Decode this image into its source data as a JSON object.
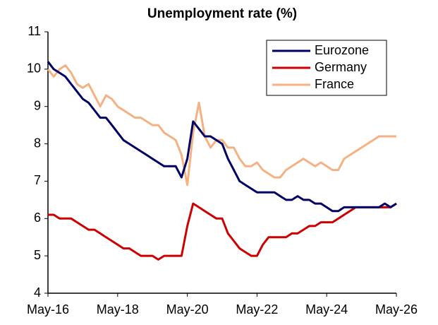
{
  "chart_data": {
    "type": "line",
    "title": "Unemployment rate (%)",
    "categories": [
      "May-16",
      null,
      null,
      null,
      null,
      null,
      null,
      null,
      null,
      null,
      null,
      null,
      "May-18",
      null,
      null,
      null,
      null,
      null,
      null,
      null,
      null,
      null,
      null,
      null,
      "May-20",
      null,
      null,
      null,
      null,
      null,
      null,
      null,
      null,
      null,
      null,
      null,
      "May-22",
      null,
      null,
      null,
      null,
      null,
      null,
      null,
      null,
      null,
      null,
      null,
      "May-24",
      null,
      null,
      null,
      null,
      null,
      null,
      null,
      null,
      null,
      null,
      null,
      "May-26"
    ],
    "series": [
      {
        "name": "Eurozone",
        "color": "#000066",
        "values": [
          10.2,
          10.0,
          9.9,
          9.8,
          9.6,
          9.4,
          9.2,
          9.1,
          8.9,
          8.7,
          8.7,
          8.5,
          8.3,
          8.1,
          8.0,
          7.9,
          7.8,
          7.7,
          7.6,
          7.5,
          7.4,
          7.4,
          7.4,
          7.1,
          7.6,
          8.6,
          8.4,
          8.2,
          8.2,
          8.1,
          8.0,
          7.6,
          7.3,
          7.0,
          6.9,
          6.8,
          6.7,
          6.7,
          6.7,
          6.7,
          6.6,
          6.5,
          6.5,
          6.6,
          6.5,
          6.5,
          6.4,
          6.4,
          6.3,
          6.2,
          6.2,
          6.3,
          6.3,
          6.3,
          6.3,
          6.3,
          6.3,
          6.3,
          6.4,
          6.3,
          6.4
        ]
      },
      {
        "name": "Germany",
        "color": "#cc0000",
        "values": [
          6.1,
          6.1,
          6.0,
          6.0,
          6.0,
          5.9,
          5.8,
          5.7,
          5.7,
          5.6,
          5.5,
          5.4,
          5.3,
          5.2,
          5.2,
          5.1,
          5.0,
          5.0,
          5.0,
          4.9,
          5.0,
          5.0,
          5.0,
          5.0,
          5.8,
          6.4,
          6.3,
          6.2,
          6.1,
          6.0,
          6.0,
          5.6,
          5.4,
          5.2,
          5.1,
          5.0,
          5.0,
          5.3,
          5.5,
          5.5,
          5.5,
          5.5,
          5.6,
          5.6,
          5.7,
          5.8,
          5.8,
          5.9,
          5.9,
          5.9,
          6.0,
          6.1,
          6.2,
          6.3,
          6.3,
          6.3,
          6.3,
          6.3,
          6.3,
          6.3,
          6.4
        ]
      },
      {
        "name": "France",
        "color": "#f4b183",
        "values": [
          10.0,
          9.8,
          10.0,
          10.1,
          9.9,
          9.6,
          9.5,
          9.6,
          9.3,
          9.0,
          9.3,
          9.2,
          9.0,
          8.9,
          8.8,
          8.7,
          8.7,
          8.6,
          8.5,
          8.5,
          8.3,
          8.2,
          8.1,
          7.7,
          6.9,
          8.3,
          9.1,
          8.2,
          7.9,
          8.1,
          8.1,
          7.9,
          7.9,
          7.6,
          7.4,
          7.4,
          7.5,
          7.3,
          7.2,
          7.1,
          7.1,
          7.3,
          7.4,
          7.5,
          7.6,
          7.5,
          7.4,
          7.5,
          7.4,
          7.3,
          7.3,
          7.6,
          7.7,
          7.8,
          7.9,
          8.0,
          8.1,
          8.2,
          8.2,
          8.2,
          8.2
        ]
      }
    ],
    "ylim": [
      4,
      11
    ],
    "yticks": [
      4,
      5,
      6,
      7,
      8,
      9,
      10,
      11
    ],
    "grid": false,
    "legend": "top-right"
  }
}
